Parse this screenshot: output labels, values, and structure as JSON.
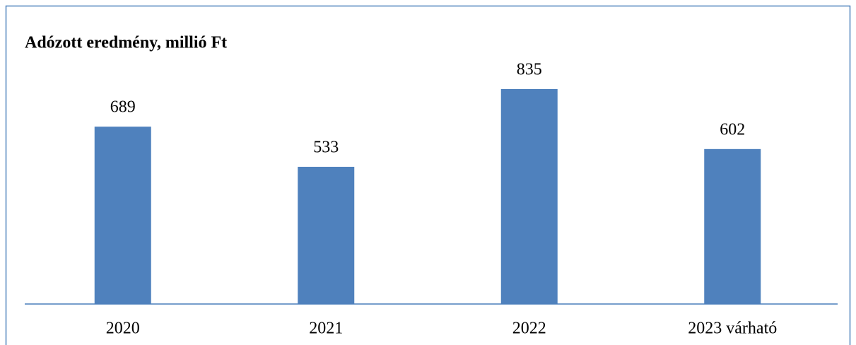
{
  "chart_data": {
    "type": "bar",
    "title": "Adózott eredmény, millió Ft",
    "categories": [
      "2020",
      "2021",
      "2022",
      "2023 várható"
    ],
    "values": [
      689,
      533,
      835,
      602
    ],
    "color": "#4f81bd"
  }
}
